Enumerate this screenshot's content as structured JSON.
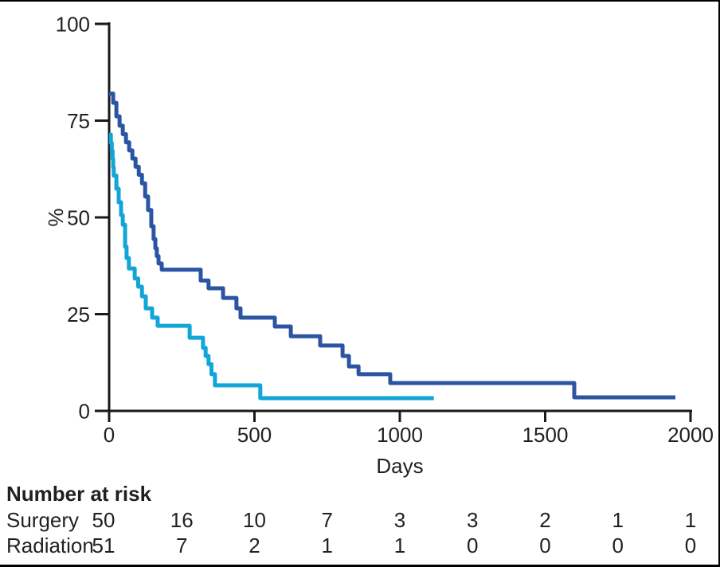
{
  "colors": {
    "axis": "#1a1a1a",
    "text": "#231f20",
    "surgery": "#2b55a3",
    "radiation": "#12a5d7"
  },
  "chart_data": {
    "type": "line",
    "subtype": "kaplan-meier-step",
    "title": "",
    "xlabel": "Days",
    "ylabel": "%",
    "xlim": [
      0,
      2000
    ],
    "ylim": [
      0,
      100
    ],
    "x_ticks": [
      0,
      500,
      1000,
      1500,
      2000
    ],
    "y_ticks": [
      0,
      25,
      50,
      75,
      100
    ],
    "grid": false,
    "legend": "none",
    "series": [
      {
        "name": "Surgery",
        "color": "#2b55a3",
        "points": [
          [
            0,
            82
          ],
          [
            14,
            79.6
          ],
          [
            25,
            76.1
          ],
          [
            36,
            73.7
          ],
          [
            47,
            71.5
          ],
          [
            58,
            69.4
          ],
          [
            69,
            67.3
          ],
          [
            80,
            65.2
          ],
          [
            91,
            63.1
          ],
          [
            102,
            61.0
          ],
          [
            113,
            58.8
          ],
          [
            124,
            55.4
          ],
          [
            134,
            51.9
          ],
          [
            145,
            47.7
          ],
          [
            153,
            44.4
          ],
          [
            159,
            42.0
          ],
          [
            164,
            40.0
          ],
          [
            170,
            38.1
          ],
          [
            181,
            36.5
          ],
          [
            315,
            33.7
          ],
          [
            342,
            31.7
          ],
          [
            392,
            29.2
          ],
          [
            438,
            26.5
          ],
          [
            452,
            24.1
          ],
          [
            570,
            21.8
          ],
          [
            625,
            19.3
          ],
          [
            726,
            16.9
          ],
          [
            803,
            14.2
          ],
          [
            825,
            11.5
          ],
          [
            858,
            9.5
          ],
          [
            967,
            7.2
          ],
          [
            1600,
            3.5
          ],
          [
            1948,
            3.5
          ]
        ]
      },
      {
        "name": "Radiation",
        "color": "#12a5d7",
        "points": [
          [
            0,
            71.4
          ],
          [
            6,
            69.3
          ],
          [
            9,
            67.2
          ],
          [
            12,
            65.1
          ],
          [
            14,
            62.9
          ],
          [
            16,
            60.8
          ],
          [
            25,
            57.4
          ],
          [
            33,
            53.9
          ],
          [
            41,
            50.6
          ],
          [
            47,
            48.1
          ],
          [
            55,
            42.4
          ],
          [
            60,
            39.5
          ],
          [
            68,
            36.8
          ],
          [
            88,
            34.2
          ],
          [
            100,
            32.1
          ],
          [
            113,
            29.6
          ],
          [
            126,
            26.5
          ],
          [
            148,
            24.1
          ],
          [
            167,
            22.0
          ],
          [
            277,
            18.9
          ],
          [
            323,
            16.3
          ],
          [
            332,
            14.2
          ],
          [
            342,
            12.1
          ],
          [
            352,
            9.5
          ],
          [
            364,
            6.6
          ],
          [
            520,
            3.3
          ],
          [
            1117,
            3.3
          ]
        ]
      }
    ]
  },
  "at_risk": {
    "heading": "Number at risk",
    "time_points": [
      0,
      250,
      500,
      750,
      1000,
      1250,
      1500,
      1750,
      2000
    ],
    "rows": [
      {
        "label": "Surgery",
        "counts": [
          50,
          16,
          10,
          7,
          3,
          3,
          2,
          1,
          1
        ]
      },
      {
        "label": "Radiation",
        "counts": [
          51,
          7,
          2,
          1,
          1,
          0,
          0,
          0,
          0
        ]
      }
    ]
  }
}
